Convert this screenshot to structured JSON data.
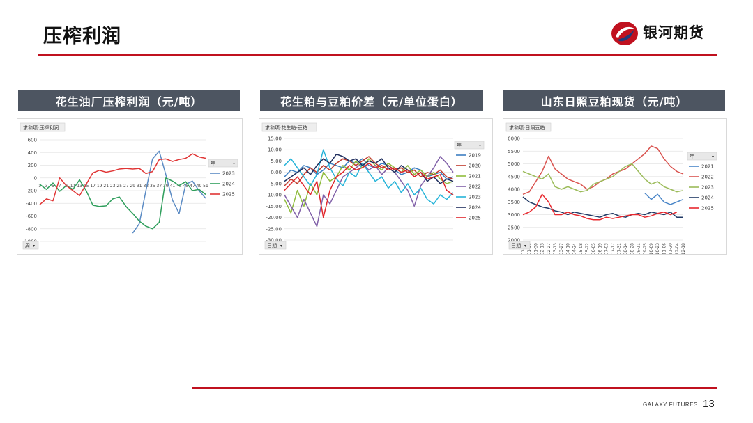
{
  "page": {
    "title": "压榨利润",
    "brand": "银河期货",
    "footer_brand": "GALAXY FUTURES",
    "page_number": "13"
  },
  "colors": {
    "accent": "#c0111f",
    "header_bg": "#4d5561"
  },
  "panels": [
    {
      "header": "花生油厂压榨利润（元/吨）"
    },
    {
      "header": "花生粕与豆粕价差（元/单位蛋白）"
    },
    {
      "header": "山东日照豆粕现货（元/吨）"
    }
  ],
  "chart_data": [
    {
      "type": "line",
      "field_label": "求和项:压榨利润",
      "filter_label": "周",
      "legend_title": "年",
      "legend_placement": "right",
      "ylim": [
        -1000,
        600
      ],
      "yticks": [
        "600",
        "400",
        "200",
        "0",
        "-200",
        "-400",
        "-600",
        "-800",
        "-1000"
      ],
      "xticks": [
        "1",
        "3",
        "5",
        "7",
        "9",
        "11",
        "13",
        "15",
        "17",
        "19",
        "21",
        "23",
        "25",
        "27",
        "29",
        "31",
        "33",
        "35",
        "37",
        "39",
        "41",
        "43",
        "45",
        "47",
        "49",
        "51"
      ],
      "x": [
        1,
        3,
        5,
        7,
        9,
        11,
        13,
        15,
        17,
        19,
        21,
        23,
        25,
        27,
        29,
        31,
        33,
        35,
        37,
        39,
        41,
        43,
        45,
        47,
        49,
        51
      ],
      "series": [
        {
          "name": "2023",
          "color": "#5b8bc4",
          "values": [
            null,
            null,
            null,
            null,
            null,
            null,
            null,
            null,
            null,
            null,
            null,
            null,
            null,
            null,
            -870,
            -720,
            -200,
            300,
            420,
            50,
            -350,
            -560,
            -100,
            -50,
            -200,
            -320
          ]
        },
        {
          "name": "2024",
          "color": "#2e9e5b",
          "values": [
            -100,
            -180,
            -80,
            -210,
            -120,
            -180,
            -30,
            -200,
            -430,
            -450,
            -440,
            -330,
            -300,
            -450,
            -560,
            -680,
            -760,
            -800,
            -700,
            0,
            -50,
            -120,
            -60,
            -200,
            -180,
            -260
          ]
        },
        {
          "name": "2025",
          "color": "#e03535",
          "values": [
            -420,
            -330,
            -360,
            0,
            -120,
            -200,
            -280,
            -100,
            80,
            120,
            90,
            110,
            140,
            150,
            140,
            150,
            70,
            100,
            290,
            300,
            260,
            290,
            310,
            380,
            330,
            310
          ]
        }
      ]
    },
    {
      "type": "line",
      "field_label": "求和项:花生粕-豆粕",
      "filter_label": "日期",
      "legend_title": "年",
      "legend_placement": "right",
      "ylim": [
        -30,
        15
      ],
      "yticks": [
        "15.00",
        "10.00",
        "5.00",
        "0.00",
        "-5.00",
        "-10.00",
        "-15.00",
        "-20.00",
        "-25.00",
        "-30.00"
      ],
      "series": [
        {
          "name": "2019",
          "color": "#3d7fc1",
          "values": [
            -2,
            1,
            0,
            3,
            2,
            -1,
            1,
            4,
            3,
            2,
            5,
            4,
            6,
            3,
            2,
            4,
            3,
            1,
            -1,
            0,
            2,
            1,
            -2,
            -1,
            0,
            -3,
            -2
          ]
        },
        {
          "name": "2020",
          "color": "#c0392b",
          "values": [
            -6,
            -3,
            -5,
            -1,
            2,
            0,
            3,
            1,
            4,
            6,
            5,
            3,
            5,
            7,
            4,
            2,
            3,
            1,
            2,
            0,
            1,
            -2,
            0,
            -1,
            1,
            -2,
            -3
          ]
        },
        {
          "name": "2021",
          "color": "#8fbc3c",
          "values": [
            -12,
            -18,
            -8,
            -15,
            -5,
            -10,
            0,
            -4,
            -2,
            3,
            1,
            5,
            2,
            6,
            3,
            1,
            4,
            2,
            0,
            3,
            -1,
            1,
            -2,
            0,
            -3,
            -5,
            -4
          ]
        },
        {
          "name": "2022",
          "color": "#8060a8",
          "values": [
            -10,
            -15,
            -20,
            -12,
            -18,
            -24,
            -10,
            -14,
            -8,
            -2,
            0,
            2,
            4,
            1,
            3,
            -1,
            2,
            0,
            -4,
            -8,
            -15,
            -6,
            -2,
            2,
            7,
            4,
            0
          ]
        },
        {
          "name": "2023",
          "color": "#26b4d9",
          "values": [
            3,
            6,
            2,
            -2,
            -6,
            -1,
            10,
            2,
            -3,
            -6,
            0,
            -2,
            4,
            0,
            -4,
            -2,
            -7,
            -4,
            -9,
            -5,
            -10,
            -7,
            -12,
            -14,
            -10,
            -12,
            -9
          ]
        },
        {
          "name": "2024",
          "color": "#1f2e5e",
          "values": [
            -4,
            -2,
            0,
            2,
            -1,
            3,
            6,
            4,
            8,
            7,
            5,
            6,
            3,
            5,
            4,
            6,
            2,
            0,
            3,
            1,
            -2,
            0,
            -4,
            -2,
            -5,
            -3,
            -4
          ]
        },
        {
          "name": "2025",
          "color": "#e0252b",
          "values": [
            -8,
            -5,
            -2,
            -6,
            -10,
            -4,
            -20,
            -8,
            -2,
            0,
            3,
            1,
            2,
            4,
            2,
            3,
            1,
            2,
            0,
            1,
            -2,
            0,
            -3,
            -2,
            -1,
            -8,
            -10
          ]
        }
      ]
    },
    {
      "type": "line",
      "field_label": "求和项:日照豆粕",
      "filter_label": "日期",
      "legend_title": "年",
      "legend_placement": "right",
      "ylim": [
        2000,
        6000
      ],
      "yticks": [
        "6000",
        "5500",
        "5000",
        "4500",
        "4000",
        "3500",
        "3000",
        "2500",
        "2000"
      ],
      "xticks": [
        "01-02",
        "01-16",
        "01-30",
        "02-13",
        "02-27",
        "03-13",
        "03-27",
        "04-10",
        "04-24",
        "05-08",
        "05-22",
        "06-05",
        "06-19",
        "07-03",
        "07-17",
        "07-31",
        "08-14",
        "08-28",
        "09-11",
        "09-25",
        "10-09",
        "10-23",
        "11-06",
        "11-20",
        "12-04",
        "12-18"
      ],
      "series": [
        {
          "name": "2021",
          "color": "#4a86c8",
          "values": [
            null,
            null,
            null,
            null,
            null,
            null,
            null,
            null,
            null,
            null,
            null,
            null,
            null,
            null,
            null,
            null,
            null,
            null,
            null,
            3850,
            3600,
            3800,
            3500,
            3400,
            3500,
            3600
          ]
        },
        {
          "name": "2022",
          "color": "#d9534f",
          "values": [
            3800,
            3900,
            4300,
            4700,
            5300,
            4800,
            4600,
            4400,
            4300,
            4200,
            4000,
            4100,
            4300,
            4400,
            4600,
            4700,
            4800,
            5000,
            5200,
            5400,
            5700,
            5600,
            5200,
            4900,
            4700,
            4600
          ]
        },
        {
          "name": "2023",
          "color": "#9bbb59",
          "values": [
            4700,
            4600,
            4500,
            4400,
            4600,
            4100,
            4000,
            4100,
            4000,
            3900,
            3950,
            4200,
            4300,
            4400,
            4500,
            4700,
            4900,
            5000,
            4700,
            4400,
            4200,
            4300,
            4100,
            4000,
            3900,
            3950
          ]
        },
        {
          "name": "2024",
          "color": "#1f3864",
          "values": [
            3700,
            3500,
            3400,
            3300,
            3250,
            3150,
            3100,
            3000,
            3100,
            3050,
            3000,
            2950,
            2900,
            3000,
            3050,
            2950,
            2900,
            3000,
            3050,
            3000,
            3100,
            3050,
            3000,
            3100,
            2900,
            2900
          ]
        },
        {
          "name": "2025",
          "color": "#e8282e",
          "values": [
            3000,
            3100,
            3300,
            3800,
            3500,
            3000,
            3000,
            3100,
            3000,
            2950,
            2850,
            2800,
            2800,
            2900,
            2850,
            2900,
            2950,
            3000,
            3000,
            2900,
            2950,
            3050,
            3100,
            3000,
            3100,
            null
          ]
        }
      ]
    }
  ]
}
